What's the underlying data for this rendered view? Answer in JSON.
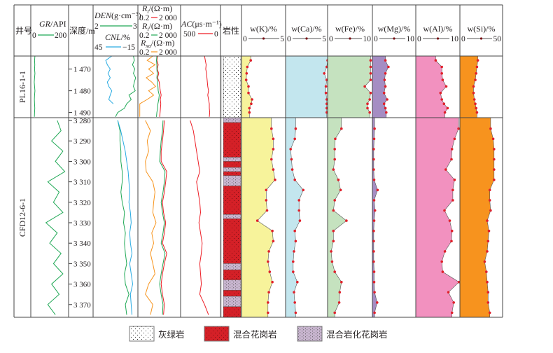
{
  "header": {
    "well": "井号",
    "gr": {
      "name": "GR",
      "unit": "/API",
      "min": "0",
      "max": "200"
    },
    "depth": "深度/m",
    "den": {
      "name": "DEN",
      "unit": "(g·cm⁻³)",
      "min": "2",
      "max": "3"
    },
    "cnl": {
      "name": "CNL",
      "unit": "/%",
      "min": "45",
      "max": "−15"
    },
    "rt": {
      "name": "R",
      "sub": "t",
      "unit": "/(Ω·m)",
      "min": "0.2",
      "max": "2 000"
    },
    "ri": {
      "name": "R",
      "sub": "i",
      "unit": "/(Ω·m)",
      "min": "0.2",
      "max": "2 000"
    },
    "rxo": {
      "name": "R",
      "sub": "xo",
      "unit": "/(Ω·m)",
      "min": "0.2",
      "max": "2 000"
    },
    "ac": {
      "name": "AC",
      "unit": "(μs·m⁻¹)",
      "min": "500",
      "max": "0"
    },
    "lith": "岩性",
    "elements": [
      {
        "label": "w(K)/%",
        "min": "0",
        "max": "5"
      },
      {
        "label": "w(Ca)/%",
        "min": "0",
        "max": "5"
      },
      {
        "label": "w(Fe)/%",
        "min": "0",
        "max": "10"
      },
      {
        "label": "w(Mg)/%",
        "min": "0",
        "max": "10"
      },
      {
        "label": "w(Al)/%",
        "min": "0",
        "max": "10"
      },
      {
        "label": "w(Si)/%",
        "min": "0",
        "max": "50"
      }
    ]
  },
  "wells": [
    "PL16-1-1",
    "CFD12-6-1"
  ],
  "depth_ticks": [
    [
      "1 470",
      "1 480",
      "1 490"
    ],
    [
      "3 280",
      "3 290",
      "3 300",
      "3 310",
      "3 320",
      "3 330",
      "3 340",
      "3 350",
      "3 360",
      "3 370"
    ]
  ],
  "legend": [
    {
      "label": "灰绿岩",
      "type": "greenstone"
    },
    {
      "label": "混合花岗岩",
      "type": "migmatitic-granite"
    },
    {
      "label": "混合岩化花岗岩",
      "type": "migmatized-granite"
    }
  ],
  "colors": {
    "gr": "#1fa855",
    "den": "#1fa855",
    "cnl": "#29abe2",
    "rt": "#ed1c24",
    "ri": "#1fa855",
    "rxo": "#f7941d",
    "ac": "#ed1c24",
    "K": "#f7f39b",
    "Ca": "#c3e6ee",
    "Fe": "#c5e2bf",
    "Mg": "#a58dc3",
    "Al": "#f291bf",
    "Si": "#f7931e",
    "point": "#e0202a",
    "granite": "#d42027",
    "migmatized": "#c9b6d0"
  },
  "chart_data": {
    "type": "line",
    "title": "",
    "sections": [
      {
        "well": "PL16-1-1",
        "depth_range": [
          1464,
          1492.4
        ],
        "log_depths": [
          1464,
          1466,
          1468,
          1470,
          1472,
          1474,
          1476,
          1478,
          1480,
          1482,
          1484,
          1486,
          1488,
          1490,
          1492
        ],
        "GR": [
          22,
          20,
          21,
          20,
          22,
          20,
          18,
          20,
          22,
          20,
          19,
          20,
          21,
          20,
          19
        ],
        "DEN": [
          2.9,
          2.92,
          2.88,
          2.93,
          2.9,
          2.95,
          2.92,
          2.9,
          2.94,
          2.8,
          2.85,
          2.75,
          2.7,
          2.55,
          2.5
        ],
        "CNL": [
          20,
          28,
          26,
          22,
          25,
          22,
          26,
          24,
          20,
          22,
          24,
          18,
          null,
          null,
          null
        ],
        "Rt": [
          14,
          12,
          16,
          13,
          18,
          14,
          20,
          22,
          25,
          30,
          25,
          28,
          26,
          24,
          22
        ],
        "Ri": [
          12,
          11,
          12,
          12,
          13,
          12,
          14,
          15,
          16,
          20,
          18,
          15,
          14,
          12,
          11
        ],
        "Rxo": [
          5,
          1.5,
          8,
          2,
          6,
          1.2,
          4,
          9,
          2,
          6,
          1.5,
          0.3,
          0.3,
          0.3,
          0.3
        ],
        "AC": [
          200,
          190,
          180,
          185,
          175,
          170,
          165,
          160,
          150,
          160,
          150,
          140,
          140,
          135,
          140
        ],
        "element_depths": [
          1466,
          1469,
          1472,
          1475,
          1478,
          1481,
          1484,
          1486,
          1488,
          1490
        ],
        "K": [
          1.05,
          0.66,
          0.58,
          0.53,
          0.79,
          0.79,
          1.2,
          1.1,
          0.9,
          0.9
        ],
        "Ca": [
          5.0,
          4.9,
          4.6,
          4.9,
          4.8,
          4.8,
          4.9,
          4.9,
          4.9,
          4.9
        ],
        "Fe": [
          9.6,
          9.6,
          9.6,
          9.6,
          8.3,
          9.6,
          9.4,
          8.9,
          8.9,
          9.4
        ],
        "Mg": [
          3.0,
          3.7,
          3.0,
          2.8,
          3.0,
          2.7,
          3.4,
          2.7,
          3.0,
          3.2
        ],
        "Al": [
          4.5,
          5.9,
          5.9,
          6.1,
          6.9,
          5.6,
          5.9,
          6.4,
          7.2,
          6.6
        ],
        "Si": [
          21,
          20,
          19,
          18,
          16,
          16,
          17,
          18,
          19,
          20
        ],
        "lithology": [
          {
            "top": 1464,
            "bottom": 1492.4,
            "type": "greenstone"
          }
        ]
      },
      {
        "well": "CFD12-6-1",
        "depth_range": [
          3278.6,
          3376.2
        ],
        "log_depths": [
          3280,
          3285,
          3290,
          3295,
          3300,
          3305,
          3310,
          3315,
          3320,
          3325,
          3330,
          3335,
          3340,
          3345,
          3350,
          3355,
          3360,
          3365,
          3370,
          3375
        ],
        "GR": [
          140,
          160,
          110,
          170,
          130,
          180,
          90,
          150,
          120,
          170,
          80,
          140,
          100,
          160,
          120,
          170,
          110,
          150,
          90,
          130
        ],
        "DEN": [
          2.55,
          2.6,
          2.6,
          2.62,
          2.62,
          2.65,
          2.65,
          2.62,
          2.65,
          2.7,
          2.68,
          2.72,
          2.7,
          2.72,
          2.75,
          2.7,
          2.72,
          2.8,
          2.72,
          2.75
        ],
        "CNL": [
          12,
          8,
          5,
          2,
          0,
          -2,
          -3,
          -4,
          -3,
          -5,
          -6,
          -4,
          -5,
          -7,
          -4,
          -6,
          -8,
          -5,
          -6,
          -7
        ],
        "Rt": [
          60,
          50,
          40,
          30,
          30,
          100,
          80,
          60,
          40,
          50,
          80,
          60,
          40,
          100,
          60,
          40,
          30,
          40,
          60,
          50
        ],
        "Ri": [
          45,
          40,
          30,
          25,
          22,
          70,
          60,
          45,
          30,
          40,
          60,
          45,
          30,
          70,
          45,
          30,
          22,
          30,
          45,
          40
        ],
        "Rxo": [
          1,
          3,
          1.5,
          2,
          1,
          1.2,
          5,
          8,
          6,
          5,
          10,
          4,
          6,
          3,
          5,
          8,
          2,
          1,
          5,
          3
        ],
        "AC": [
          380,
          340,
          320,
          300,
          280,
          260,
          300,
          280,
          260,
          250,
          270,
          250,
          230,
          240,
          260,
          250,
          240,
          260,
          200,
          150
        ],
        "element_depths": [
          3284,
          3289,
          3294,
          3299,
          3304,
          3309,
          3314,
          3319,
          3324,
          3329,
          3334,
          3339,
          3344,
          3349,
          3354,
          3359,
          3364,
          3369,
          3374
        ],
        "K": [
          3.4,
          3.6,
          3.6,
          3.4,
          3.6,
          3.8,
          2.8,
          2.8,
          2.9,
          1.8,
          3.5,
          3.6,
          3.1,
          3.0,
          3.2,
          3.5,
          3.1,
          3.0,
          3.0
        ],
        "Ca": [
          1.2,
          1.1,
          0.6,
          0.7,
          0.8,
          1.1,
          2.1,
          1.6,
          1.6,
          1.7,
          1.1,
          1.2,
          1.0,
          0.9,
          0.9,
          1.4,
          1.0,
          1.1,
          1.2
        ],
        "Fe": [
          3.1,
          1.7,
          1.6,
          1.6,
          1.3,
          2.4,
          2.9,
          1.6,
          1.3,
          4.2,
          1.3,
          1.3,
          0.8,
          1.0,
          1.6,
          3.1,
          2.7,
          2.6,
          1.6
        ],
        "Mg": [
          0.5,
          0.4,
          0.3,
          0.3,
          0.3,
          0.4,
          1.2,
          0.4,
          0.6,
          0.4,
          0.3,
          0.3,
          0.3,
          0.3,
          0.4,
          0.4,
          0.5,
          1.1,
          0.5
        ],
        "Al": [
          9.7,
          8.8,
          8.2,
          8.1,
          6.8,
          8.8,
          8.4,
          8.4,
          6.5,
          7.7,
          8.2,
          8.1,
          6.6,
          5.9,
          6.1,
          9.8,
          7.4,
          8.6,
          8.2
        ],
        "Si": [
          36,
          39,
          40,
          40,
          40,
          40,
          35,
          35,
          36,
          32,
          34,
          33,
          32,
          29,
          31,
          32,
          33,
          33,
          35
        ],
        "lithology": [
          {
            "top": 3278.6,
            "bottom": 3281,
            "type": "migmatized-granite"
          },
          {
            "top": 3281,
            "bottom": 3298,
            "type": "migmatitic-granite"
          },
          {
            "top": 3298,
            "bottom": 3300,
            "type": "migmatized-granite"
          },
          {
            "top": 3300,
            "bottom": 3303,
            "type": "migmatitic-granite"
          },
          {
            "top": 3303,
            "bottom": 3305,
            "type": "migmatized-granite"
          },
          {
            "top": 3305,
            "bottom": 3307,
            "type": "migmatitic-granite"
          },
          {
            "top": 3307,
            "bottom": 3312,
            "type": "migmatized-granite"
          },
          {
            "top": 3312,
            "bottom": 3326,
            "type": "migmatitic-granite"
          },
          {
            "top": 3326,
            "bottom": 3328,
            "type": "migmatized-granite"
          },
          {
            "top": 3328,
            "bottom": 3350,
            "type": "migmatitic-granite"
          },
          {
            "top": 3350,
            "bottom": 3353,
            "type": "migmatized-granite"
          },
          {
            "top": 3353,
            "bottom": 3358,
            "type": "migmatitic-granite"
          },
          {
            "top": 3358,
            "bottom": 3363,
            "type": "migmatized-granite"
          },
          {
            "top": 3363,
            "bottom": 3366,
            "type": "migmatitic-granite"
          },
          {
            "top": 3366,
            "bottom": 3371,
            "type": "migmatized-granite"
          },
          {
            "top": 3371,
            "bottom": 3376.2,
            "type": "migmatitic-granite"
          }
        ]
      }
    ]
  }
}
